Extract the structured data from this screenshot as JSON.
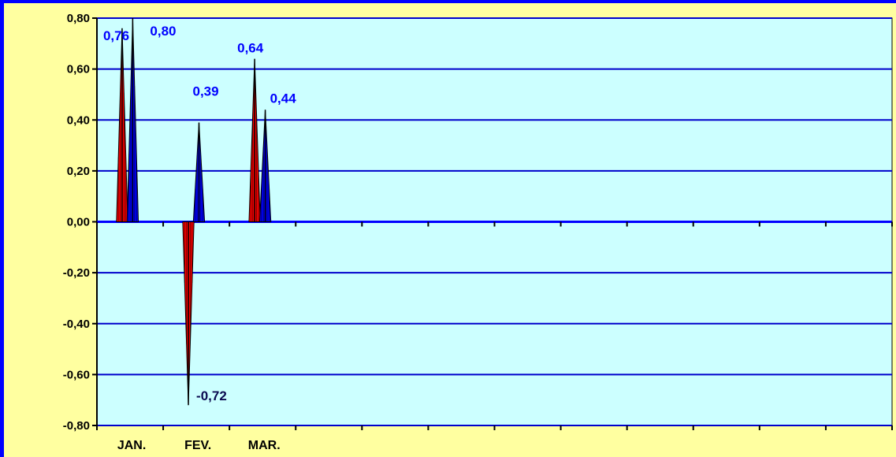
{
  "chart_data": {
    "type": "bar",
    "bar_shape": "spike",
    "title": "",
    "xlabel": "",
    "ylabel": "",
    "categories": [
      "JAN.",
      "FEV.",
      "MAR.",
      "",
      "",
      "",
      "",
      "",
      "",
      "",
      "",
      ""
    ],
    "series": [
      {
        "color": "#FF0000",
        "values": [
          0.76,
          -0.72,
          0.64,
          null,
          null,
          null,
          null,
          null,
          null,
          null,
          null,
          null
        ]
      },
      {
        "color": "#0000FF",
        "values": [
          0.8,
          0.39,
          0.44,
          null,
          null,
          null,
          null,
          null,
          null,
          null,
          null,
          null
        ]
      }
    ],
    "data_labels": [
      {
        "text": "0,76",
        "series": 0,
        "category": 0
      },
      {
        "text": "0,80",
        "series": 1,
        "category": 0
      },
      {
        "text": "-0,72",
        "series": 0,
        "category": 1
      },
      {
        "text": "0,39",
        "series": 1,
        "category": 1
      },
      {
        "text": "0,64",
        "series": 0,
        "category": 2
      },
      {
        "text": "0,44",
        "series": 1,
        "category": 2
      }
    ],
    "ylim": [
      -0.8,
      0.8
    ],
    "y_ticks": [
      0.8,
      0.6,
      0.4,
      0.2,
      0.0,
      -0.2,
      -0.4,
      -0.6,
      -0.8
    ],
    "y_tick_labels": [
      "0,80",
      "0,60",
      "0,40",
      "0,20",
      "0,00",
      "-0,20",
      "-0,40",
      "-0,60",
      "-0,80"
    ],
    "grid": true,
    "legend": "none",
    "colors": {
      "background": "#FFFFA0",
      "plot_area": "#CCFFFF",
      "frame": "#0000FF",
      "gridline": "#0000CC",
      "data_label": "#0000FF"
    }
  }
}
